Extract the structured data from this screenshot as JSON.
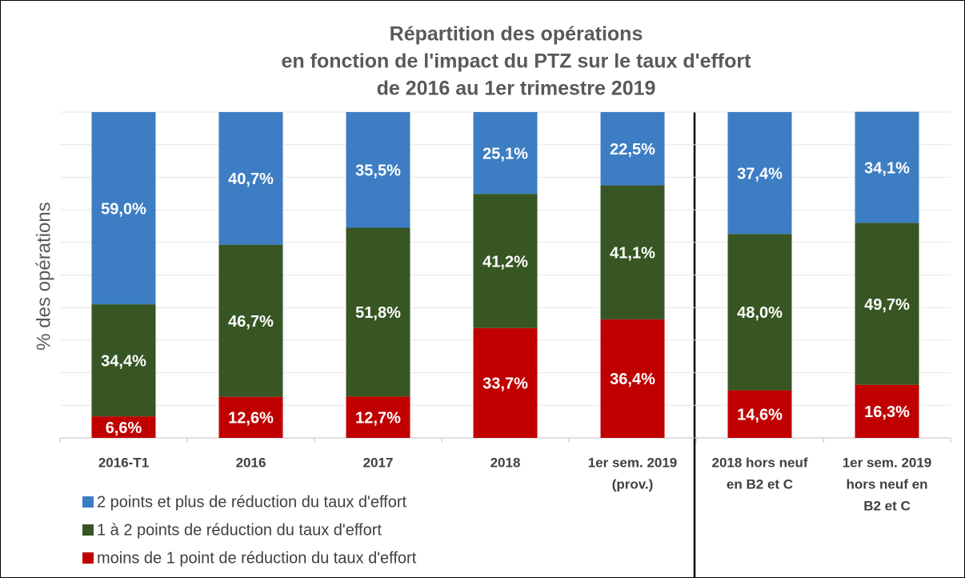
{
  "chart_data": {
    "type": "bar",
    "stacked": true,
    "title": [
      "Répartition des opérations",
      "en fonction de l'impact du PTZ sur le taux d'effort",
      "de 2016 au 1er trimestre 2019"
    ],
    "y_label": "% des opérations",
    "categories": [
      [
        "2016-T1"
      ],
      [
        "2016"
      ],
      [
        "2017"
      ],
      [
        "2018"
      ],
      [
        "1er sem. 2019",
        "(prov.)"
      ],
      [
        "2018 hors neuf",
        "en B2 et C"
      ],
      [
        "1er sem. 2019",
        "hors neuf en",
        "B2 et C"
      ]
    ],
    "series": [
      {
        "name": "2 points et plus de réduction du taux d'effort",
        "color": "#3d7dc3",
        "values": [
          59.0,
          40.7,
          35.5,
          25.1,
          22.5,
          37.4,
          34.1
        ],
        "value_labels": [
          "59,0%",
          "40,7%",
          "35,5%",
          "25,1%",
          "22,5%",
          "37,4%",
          "34,1%"
        ]
      },
      {
        "name": "1 à 2 points de réduction du taux d'effort",
        "color": "#375623",
        "values": [
          34.4,
          46.7,
          51.8,
          41.2,
          41.1,
          48.0,
          49.7
        ],
        "value_labels": [
          "34,4%",
          "46,7%",
          "51,8%",
          "41,2%",
          "41,1%",
          "48,0%",
          "49,7%"
        ]
      },
      {
        "name": "moins de 1 point de réduction du taux d'effort",
        "color": "#c00000",
        "values": [
          6.6,
          12.6,
          12.7,
          33.7,
          36.4,
          14.6,
          16.3
        ],
        "value_labels": [
          "6,6%",
          "12,6%",
          "12,7%",
          "33,7%",
          "36,4%",
          "14,6%",
          "16,3%"
        ]
      }
    ],
    "ylim": [
      0,
      100
    ],
    "yticks": [
      0,
      10,
      20,
      30,
      40,
      50,
      60,
      70,
      80,
      90,
      100
    ],
    "grid": true
  }
}
